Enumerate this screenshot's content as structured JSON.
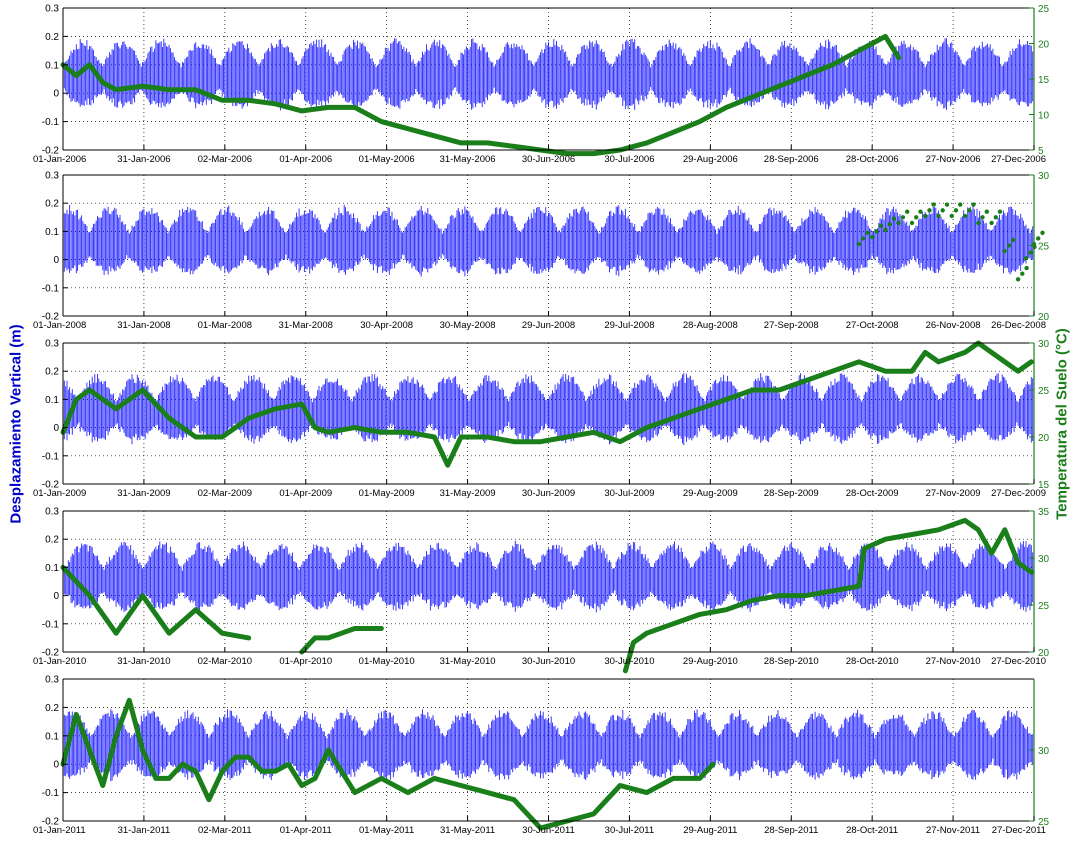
{
  "figure": {
    "ylabel_left": "Desplazamiento Vertical (m)",
    "ylabel_right": "Temperatura del Suelo (°C)",
    "colors": {
      "displacement": "#0000ff",
      "temperature": "#1a7f1a",
      "axis_right": "#1a7f1a",
      "grid": "#000000"
    }
  },
  "chart_data": [
    {
      "type": "line",
      "year": 2006,
      "ylim_left": [
        -0.2,
        0.3
      ],
      "yticks_left": [
        "-0.2",
        "-0.1",
        "0",
        "0.1",
        "0.2",
        "0.3"
      ],
      "ylim_right": [
        5,
        25
      ],
      "yticks_right": [
        "5",
        "10",
        "15",
        "20",
        "25"
      ],
      "xticks": [
        "01-Jan-2006",
        "31-Jan-2006",
        "02-Mar-2006",
        "01-Apr-2006",
        "01-May-2006",
        "31-May-2006",
        "30-Jun-2006",
        "30-Jul-2006",
        "29-Aug-2006",
        "28-Sep-2006",
        "28-Oct-2006",
        "27-Nov-2006",
        "27-Dec-2006"
      ],
      "grid": true,
      "series": [
        {
          "axis": "left",
          "kind": "oscillation",
          "baseline": 0.05,
          "amplitude": 0.17,
          "x": [
            0,
            365
          ]
        },
        {
          "axis": "right",
          "kind": "temperature",
          "x": [
            0,
            5,
            10,
            15,
            20,
            30,
            40,
            50,
            60,
            70,
            80,
            90,
            100,
            110,
            120,
            130,
            140,
            150,
            160,
            170,
            180,
            190,
            200,
            210,
            220,
            230,
            240,
            250,
            260,
            270,
            280,
            290,
            300,
            305,
            310,
            315
          ],
          "y": [
            17,
            15.5,
            17,
            14.5,
            13.5,
            14,
            13.5,
            13.5,
            12,
            12,
            11.5,
            10.5,
            11,
            11,
            9,
            8,
            7,
            6,
            6,
            5.5,
            5,
            4.5,
            4.5,
            5,
            6,
            7.5,
            9,
            11,
            12.5,
            14,
            15.5,
            17,
            19,
            20,
            21,
            18
          ]
        }
      ]
    },
    {
      "type": "line",
      "year": 2008,
      "ylim_left": [
        -0.2,
        0.3
      ],
      "yticks_left": [
        "-0.2",
        "-0.1",
        "0",
        "0.1",
        "0.2",
        "0.3"
      ],
      "ylim_right": [
        20,
        30
      ],
      "yticks_right": [
        "20",
        "25",
        "30"
      ],
      "xticks": [
        "01-Jan-2008",
        "31-Jan-2008",
        "01-Mar-2008",
        "31-Mar-2008",
        "30-Apr-2008",
        "30-May-2008",
        "29-Jun-2008",
        "29-Jul-2008",
        "28-Aug-2008",
        "27-Sep-2008",
        "27-Oct-2008",
        "26-Nov-2008",
        "26-Dec-2008"
      ],
      "grid": true,
      "series": [
        {
          "axis": "left",
          "kind": "oscillation",
          "baseline": 0.05,
          "amplitude": 0.17,
          "x": [
            0,
            366
          ]
        },
        {
          "axis": "right",
          "kind": "temperature-scatter",
          "x": [
            300,
            305,
            310,
            315,
            320,
            325,
            330,
            335,
            340,
            345,
            350,
            355,
            360,
            363,
            366
          ],
          "y": [
            25.5,
            26,
            26.5,
            27,
            27,
            27.5,
            27.5,
            27.5,
            27.5,
            27,
            27,
            25,
            23,
            24.5,
            25.5
          ]
        }
      ]
    },
    {
      "type": "line",
      "year": 2009,
      "ylim_left": [
        -0.2,
        0.3
      ],
      "yticks_left": [
        "-0.2",
        "-0.1",
        "0",
        "0.1",
        "0.2",
        "0.3"
      ],
      "ylim_right": [
        15,
        30
      ],
      "yticks_right": [
        "15",
        "20",
        "25",
        "30"
      ],
      "xticks": [
        "01-Jan-2009",
        "31-Jan-2009",
        "02-Mar-2009",
        "01-Apr-2009",
        "01-May-2009",
        "31-May-2009",
        "30-Jun-2009",
        "30-Jul-2009",
        "29-Aug-2009",
        "28-Sep-2009",
        "28-Oct-2009",
        "27-Nov-2009",
        "27-Dec-2009"
      ],
      "grid": true,
      "series": [
        {
          "axis": "left",
          "kind": "oscillation",
          "baseline": 0.05,
          "amplitude": 0.17,
          "x": [
            0,
            365
          ]
        },
        {
          "axis": "right",
          "kind": "temperature",
          "x": [
            0,
            5,
            10,
            20,
            30,
            40,
            50,
            60,
            70,
            80,
            90,
            95,
            100,
            110,
            120,
            130,
            140,
            145,
            150,
            160,
            170,
            180,
            190,
            200,
            210,
            220,
            230,
            240,
            250,
            260,
            270,
            280,
            290,
            300,
            310,
            320,
            325,
            330,
            340,
            345,
            350,
            360,
            365
          ],
          "y": [
            20.5,
            24,
            25,
            23,
            25,
            22,
            20,
            20,
            22,
            23,
            23.5,
            21,
            20.5,
            21,
            20.5,
            20.5,
            20,
            17,
            20,
            20,
            19.5,
            19.5,
            20,
            20.5,
            19.5,
            21,
            22,
            23,
            24,
            25,
            25,
            26,
            27,
            28,
            27,
            27,
            29,
            28,
            29,
            30,
            29,
            27,
            28
          ]
        }
      ]
    },
    {
      "type": "line",
      "year": 2010,
      "ylim_left": [
        -0.2,
        0.3
      ],
      "yticks_left": [
        "-0.2",
        "-0.1",
        "0",
        "0.1",
        "0.2",
        "0.3"
      ],
      "ylim_right": [
        20,
        35
      ],
      "yticks_right": [
        "20",
        "25",
        "30",
        "35"
      ],
      "xticks": [
        "01-Jan-2010",
        "31-Jan-2010",
        "02-Mar-2010",
        "01-Apr-2010",
        "01-May-2010",
        "31-May-2010",
        "30-Jun-2010",
        "30-Jul-2010",
        "29-Aug-2010",
        "28-Sep-2010",
        "28-Oct-2010",
        "27-Nov-2010",
        "27-Dec-2010"
      ],
      "grid": true,
      "series": [
        {
          "axis": "left",
          "kind": "oscillation",
          "baseline": 0.05,
          "amplitude": 0.17,
          "x": [
            0,
            365
          ]
        },
        {
          "axis": "right",
          "kind": "temperature",
          "x": [
            0,
            10,
            20,
            30,
            40,
            50,
            60,
            70
          ],
          "y": [
            29,
            26,
            22,
            26,
            22,
            24.5,
            22,
            21.5
          ]
        },
        {
          "axis": "right",
          "kind": "temperature",
          "x": [
            90,
            95,
            100,
            105,
            110,
            120
          ],
          "y": [
            20,
            21.5,
            21.5,
            22,
            22.5,
            22.5
          ]
        },
        {
          "axis": "right",
          "kind": "temperature",
          "x": [
            212,
            215,
            220,
            230,
            240,
            250,
            260,
            270,
            280,
            290,
            300,
            302,
            310,
            320,
            330,
            340,
            345,
            350,
            355,
            360,
            365
          ],
          "y": [
            18,
            21,
            22,
            23,
            24,
            24.5,
            25.5,
            26,
            26,
            26.5,
            27,
            31,
            32,
            32.5,
            33,
            34,
            33,
            30.5,
            33,
            29.5,
            28.5
          ]
        }
      ]
    },
    {
      "type": "line",
      "year": 2011,
      "ylim_left": [
        -0.2,
        0.3
      ],
      "yticks_left": [
        "-0.2",
        "-0.1",
        "0",
        "0.1",
        "0.2",
        "0.3"
      ],
      "ylim_right": [
        25,
        35
      ],
      "yticks_right": [
        "25",
        "30"
      ],
      "xticks": [
        "01-Jan-2011",
        "31-Jan-2011",
        "02-Mar-2011",
        "01-Apr-2011",
        "01-May-2011",
        "31-May-2011",
        "30-Jun-2011",
        "30-Jul-2011",
        "29-Aug-2011",
        "28-Sep-2011",
        "28-Oct-2011",
        "27-Nov-2011",
        "27-Dec-2011"
      ],
      "grid": true,
      "series": [
        {
          "axis": "left",
          "kind": "oscillation",
          "baseline": 0.05,
          "amplitude": 0.17,
          "x": [
            0,
            365
          ]
        },
        {
          "axis": "right",
          "kind": "temperature",
          "x": [
            0,
            5,
            10,
            15,
            20,
            25,
            30,
            35,
            40,
            45,
            50,
            55,
            60,
            65,
            70,
            75,
            80,
            85,
            90,
            95,
            100,
            110,
            120,
            130,
            140,
            150,
            160,
            170,
            180,
            190,
            200,
            210,
            220,
            230,
            240,
            245
          ],
          "y": [
            29,
            32.5,
            30,
            27.5,
            31,
            33.5,
            30,
            28,
            28,
            29,
            28.5,
            26.5,
            28.5,
            29.5,
            29.5,
            28.5,
            28.5,
            29,
            27.5,
            28,
            30,
            27,
            28,
            27,
            28,
            27.5,
            27,
            26.5,
            24.5,
            25,
            25.5,
            27.5,
            27,
            28,
            28,
            29
          ]
        }
      ]
    }
  ]
}
